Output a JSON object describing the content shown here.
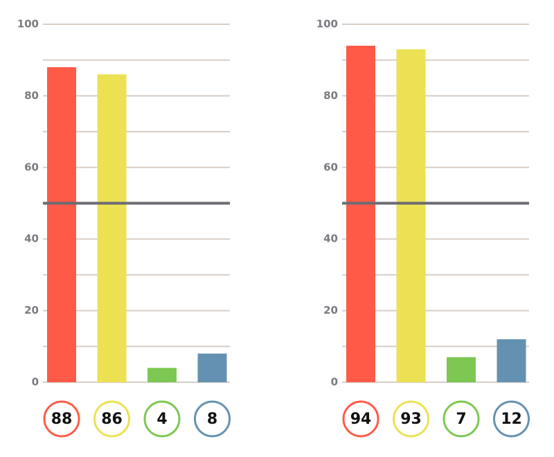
{
  "chart_data": [
    {
      "type": "bar",
      "values": [
        88,
        86,
        4,
        8
      ],
      "colors": [
        "#ff5a47",
        "#ebe152",
        "#7cc852",
        "#6491b1"
      ],
      "ylim": [
        0,
        100
      ],
      "yticks": [
        0,
        20,
        40,
        60,
        80,
        100
      ],
      "minor_yticks": [
        10,
        30,
        50,
        70,
        90
      ],
      "grid": true,
      "reference_line": 50
    },
    {
      "type": "bar",
      "values": [
        94,
        93,
        7,
        12
      ],
      "colors": [
        "#ff5a47",
        "#ebe152",
        "#7cc852",
        "#6491b1"
      ],
      "ylim": [
        0,
        100
      ],
      "yticks": [
        0,
        20,
        40,
        60,
        80,
        100
      ],
      "minor_yticks": [
        10,
        30,
        50,
        70,
        90
      ],
      "grid": true,
      "reference_line": 50
    }
  ]
}
